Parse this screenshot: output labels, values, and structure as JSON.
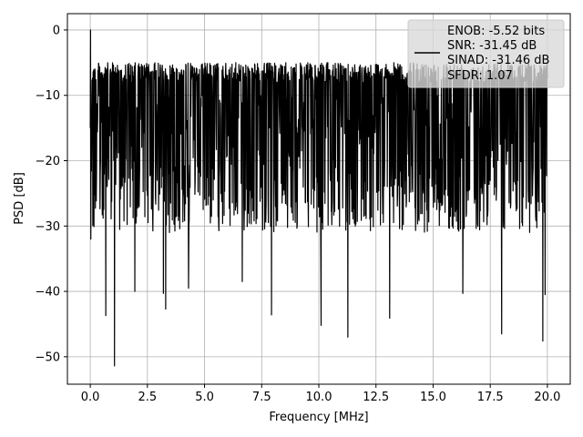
{
  "chart_data": {
    "type": "line",
    "xlabel": "Frequency [MHz]",
    "ylabel": "PSD [dB]",
    "xlim": [
      -1.0,
      21.0
    ],
    "ylim": [
      -54.2,
      2.5
    ],
    "xticks": [
      0.0,
      2.5,
      5.0,
      7.5,
      10.0,
      12.5,
      15.0,
      17.5,
      20.0
    ],
    "xtick_labels": [
      "0.0",
      "2.5",
      "5.0",
      "7.5",
      "10.0",
      "12.5",
      "15.0",
      "17.5",
      "20.0"
    ],
    "yticks": [
      0,
      -10,
      -20,
      -30,
      -40,
      -50
    ],
    "ytick_labels": [
      "0",
      "−10",
      "−20",
      "−30",
      "−40",
      "−50"
    ],
    "grid": true,
    "legend_placement": "upper right",
    "line_color": "#000000",
    "grid_color": "#b0b0b0",
    "legend_entries": [
      "ENOB: -5.52 bits",
      "SNR: -31.45 dB",
      "SINAD: -31.46 dB",
      "SFDR: 1.07"
    ],
    "series": [
      {
        "x_start": 0.0,
        "x_end": 20.0,
        "peak_value": 0.0,
        "upper_envelope_approx": -4.0,
        "lower_envelope_typical": -30.0,
        "notable_dips": [
          {
            "x": 0.68,
            "y": -43.7
          },
          {
            "x": 1.06,
            "y": -51.4
          },
          {
            "x": 1.95,
            "y": -40.0
          },
          {
            "x": 3.2,
            "y": -40.3
          },
          {
            "x": 3.3,
            "y": -42.7
          },
          {
            "x": 4.3,
            "y": -39.5
          },
          {
            "x": 6.65,
            "y": -38.5
          },
          {
            "x": 7.93,
            "y": -43.6
          },
          {
            "x": 10.1,
            "y": -45.2
          },
          {
            "x": 11.27,
            "y": -47.0
          },
          {
            "x": 13.1,
            "y": -44.1
          },
          {
            "x": 16.3,
            "y": -40.3
          },
          {
            "x": 18.0,
            "y": -46.5
          },
          {
            "x": 19.8,
            "y": -47.6
          },
          {
            "x": 19.9,
            "y": -40.5
          }
        ]
      }
    ]
  }
}
